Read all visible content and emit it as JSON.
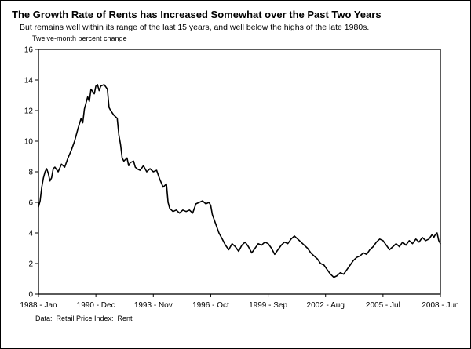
{
  "chart": {
    "title": "The Growth Rate of Rents has Increased Somewhat over the Past Two Years",
    "subtitle": "But remains well within its range of the last 15 years, and well below the highs of the late 1980s.",
    "unit_label": "Twelve-month percent change",
    "source": "Data:  Retail Price Index:  Rent"
  },
  "chart_data": {
    "type": "line",
    "title": "The Growth Rate of Rents has Increased Somewhat over the Past Two Years",
    "subtitle": "But remains well within its range of the last 15 years, and well below the highs of the late 1980s.",
    "ylabel": "Twelve-month percent change",
    "xlabel": "",
    "ylim": [
      0,
      16
    ],
    "y_ticks": [
      0,
      2,
      4,
      6,
      8,
      10,
      12,
      14,
      16
    ],
    "x_range_months": [
      0,
      245
    ],
    "x_ticks": [
      {
        "label": "1988 - Jan",
        "month": 0
      },
      {
        "label": "1990 - Dec",
        "month": 35
      },
      {
        "label": "1993 - Nov",
        "month": 70
      },
      {
        "label": "1996 - Oct",
        "month": 105
      },
      {
        "label": "1999 - Sep",
        "month": 140
      },
      {
        "label": "2002 - Aug",
        "month": 175
      },
      {
        "label": "2005 - Jul",
        "month": 210
      },
      {
        "label": "2008 - Jun",
        "month": 245
      }
    ],
    "grid": false,
    "legend": "none",
    "line_color": "#000000",
    "axis_color": "#000000",
    "source_note": "Data:  Retail Price Index:  Rent",
    "series": [
      {
        "name": "Rent, twelve-month percent change",
        "points": [
          [
            0,
            5.7
          ],
          [
            1,
            6.1
          ],
          [
            2,
            7.0
          ],
          [
            3,
            7.6
          ],
          [
            4,
            8.0
          ],
          [
            5,
            8.2
          ],
          [
            6,
            7.9
          ],
          [
            7,
            7.4
          ],
          [
            8,
            7.6
          ],
          [
            9,
            8.2
          ],
          [
            10,
            8.3
          ],
          [
            12,
            8.0
          ],
          [
            14,
            8.5
          ],
          [
            16,
            8.3
          ],
          [
            18,
            8.9
          ],
          [
            20,
            9.4
          ],
          [
            22,
            10.0
          ],
          [
            24,
            10.8
          ],
          [
            26,
            11.5
          ],
          [
            27,
            11.2
          ],
          [
            28,
            12.1
          ],
          [
            30,
            12.9
          ],
          [
            31,
            12.6
          ],
          [
            32,
            13.4
          ],
          [
            34,
            13.1
          ],
          [
            35,
            13.6
          ],
          [
            36,
            13.7
          ],
          [
            37,
            13.3
          ],
          [
            38,
            13.6
          ],
          [
            40,
            13.7
          ],
          [
            42,
            13.4
          ],
          [
            43,
            12.2
          ],
          [
            44,
            12.0
          ],
          [
            46,
            11.7
          ],
          [
            48,
            11.5
          ],
          [
            49,
            10.4
          ],
          [
            50,
            9.8
          ],
          [
            51,
            8.9
          ],
          [
            52,
            8.7
          ],
          [
            54,
            8.9
          ],
          [
            55,
            8.4
          ],
          [
            56,
            8.6
          ],
          [
            58,
            8.7
          ],
          [
            59,
            8.3
          ],
          [
            60,
            8.2
          ],
          [
            62,
            8.1
          ],
          [
            64,
            8.4
          ],
          [
            66,
            8.0
          ],
          [
            68,
            8.2
          ],
          [
            70,
            8.0
          ],
          [
            72,
            8.1
          ],
          [
            74,
            7.5
          ],
          [
            76,
            7.0
          ],
          [
            78,
            7.2
          ],
          [
            79,
            6.0
          ],
          [
            80,
            5.6
          ],
          [
            82,
            5.4
          ],
          [
            84,
            5.5
          ],
          [
            86,
            5.3
          ],
          [
            88,
            5.5
          ],
          [
            90,
            5.4
          ],
          [
            92,
            5.5
          ],
          [
            94,
            5.3
          ],
          [
            95,
            5.6
          ],
          [
            96,
            5.9
          ],
          [
            98,
            6.0
          ],
          [
            100,
            6.1
          ],
          [
            102,
            5.9
          ],
          [
            104,
            6.0
          ],
          [
            105,
            5.8
          ],
          [
            106,
            5.2
          ],
          [
            108,
            4.6
          ],
          [
            110,
            4.0
          ],
          [
            112,
            3.6
          ],
          [
            114,
            3.2
          ],
          [
            116,
            2.9
          ],
          [
            118,
            3.3
          ],
          [
            120,
            3.1
          ],
          [
            122,
            2.8
          ],
          [
            124,
            3.2
          ],
          [
            126,
            3.4
          ],
          [
            128,
            3.1
          ],
          [
            130,
            2.7
          ],
          [
            132,
            3.0
          ],
          [
            134,
            3.3
          ],
          [
            136,
            3.2
          ],
          [
            138,
            3.4
          ],
          [
            140,
            3.3
          ],
          [
            142,
            3.0
          ],
          [
            144,
            2.6
          ],
          [
            146,
            2.9
          ],
          [
            148,
            3.2
          ],
          [
            150,
            3.4
          ],
          [
            152,
            3.3
          ],
          [
            154,
            3.6
          ],
          [
            156,
            3.8
          ],
          [
            158,
            3.6
          ],
          [
            160,
            3.4
          ],
          [
            162,
            3.2
          ],
          [
            164,
            3.0
          ],
          [
            166,
            2.7
          ],
          [
            168,
            2.5
          ],
          [
            170,
            2.3
          ],
          [
            172,
            2.0
          ],
          [
            174,
            1.9
          ],
          [
            176,
            1.6
          ],
          [
            178,
            1.3
          ],
          [
            180,
            1.1
          ],
          [
            182,
            1.2
          ],
          [
            184,
            1.4
          ],
          [
            186,
            1.3
          ],
          [
            188,
            1.6
          ],
          [
            190,
            1.9
          ],
          [
            192,
            2.2
          ],
          [
            194,
            2.4
          ],
          [
            196,
            2.5
          ],
          [
            198,
            2.7
          ],
          [
            200,
            2.6
          ],
          [
            202,
            2.9
          ],
          [
            204,
            3.1
          ],
          [
            206,
            3.4
          ],
          [
            208,
            3.6
          ],
          [
            210,
            3.5
          ],
          [
            212,
            3.2
          ],
          [
            214,
            2.9
          ],
          [
            216,
            3.1
          ],
          [
            218,
            3.3
          ],
          [
            220,
            3.1
          ],
          [
            222,
            3.4
          ],
          [
            224,
            3.2
          ],
          [
            226,
            3.5
          ],
          [
            228,
            3.3
          ],
          [
            230,
            3.6
          ],
          [
            232,
            3.4
          ],
          [
            234,
            3.7
          ],
          [
            236,
            3.5
          ],
          [
            238,
            3.6
          ],
          [
            240,
            3.9
          ],
          [
            241,
            3.7
          ],
          [
            242,
            3.9
          ],
          [
            243,
            4.0
          ],
          [
            244,
            3.5
          ],
          [
            245,
            3.3
          ]
        ]
      }
    ]
  }
}
